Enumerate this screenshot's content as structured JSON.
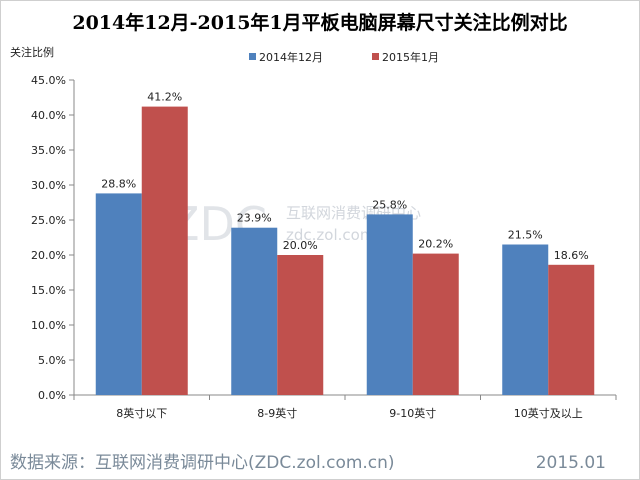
{
  "chart_data": {
    "type": "bar",
    "title": "2014年12月-2015年1月平板电脑屏幕尺寸关注比例对比",
    "ylabel": "关注比例",
    "xlabel": "",
    "categories": [
      "8英寸以下",
      "8-9英寸",
      "9-10英寸",
      "10英寸及以上"
    ],
    "series": [
      {
        "name": "2014年12月",
        "values": [
          28.8,
          23.9,
          25.8,
          21.5
        ],
        "color": "#4f81bd"
      },
      {
        "name": "2015年1月",
        "values": [
          41.2,
          20.0,
          20.2,
          18.6
        ],
        "color": "#c0504d"
      }
    ],
    "ylim": [
      0,
      45
    ],
    "yticks": [
      "0.0%",
      "5.0%",
      "10.0%",
      "15.0%",
      "20.0%",
      "25.0%",
      "30.0%",
      "35.0%",
      "40.0%",
      "45.0%"
    ],
    "data_labels": [
      [
        "28.8%",
        "23.9%",
        "25.8%",
        "21.5%"
      ],
      [
        "41.2%",
        "20.0%",
        "20.2%",
        "18.6%"
      ]
    ],
    "legend_position": "top-right",
    "grid": false
  },
  "watermark": {
    "logo": "ZDC",
    "name": "互联网消费调研中心",
    "site": "zdc.zol.com.cn"
  },
  "footer": {
    "source": "数据来源：互联网消费调研中心(ZDC.zol.com.cn)",
    "date": "2015.01"
  },
  "colors": {
    "frame": "#d0d0d0",
    "axis": "#888888"
  }
}
